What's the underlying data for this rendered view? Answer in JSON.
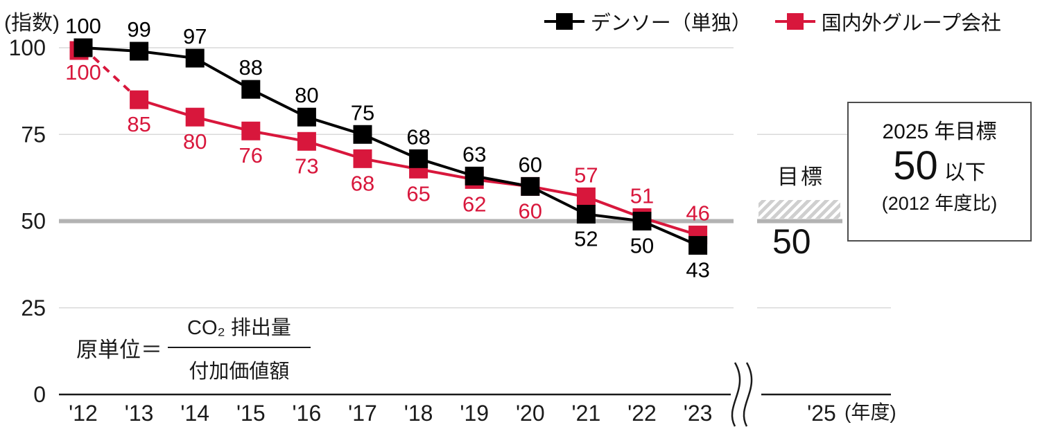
{
  "colors": {
    "black_series": "#000000",
    "red_series": "#d8173c",
    "grid": "#d9d9d9",
    "target_line": "#b3b3b3",
    "axis": "#1a1a1a",
    "hatch": "#cfcfcf",
    "text": "#1a1a1a"
  },
  "legend": {
    "items": [
      {
        "name": "denso-standalone",
        "label": "デンソー（単独）",
        "color": "#000000"
      },
      {
        "name": "group-companies",
        "label": "国内外グループ会社",
        "color": "#d8173c"
      }
    ]
  },
  "axis": {
    "y_unit_label": "(指数)",
    "x_unit_label": "(年度)",
    "y_ticks": [
      0,
      25,
      50,
      75,
      100
    ],
    "x_break_tick": "'25"
  },
  "chart_data": {
    "type": "line",
    "categories": [
      "'12",
      "'13",
      "'14",
      "'15",
      "'16",
      "'17",
      "'18",
      "'19",
      "'20",
      "'21",
      "'22",
      "'23"
    ],
    "ylim": [
      0,
      100
    ],
    "y_gridlines": [
      0,
      25,
      50,
      75,
      100
    ],
    "target_value": 50,
    "x_axis_break": true,
    "future_tick": "'25",
    "series": [
      {
        "name": "デンソー（単独）",
        "color": "#000000",
        "line_style": "solid",
        "values": [
          100,
          99,
          97,
          88,
          80,
          75,
          68,
          63,
          60,
          52,
          50,
          43
        ],
        "label_positions": [
          "above",
          "above",
          "above",
          "above",
          "above",
          "above",
          "above",
          "above",
          "above",
          "below",
          "below",
          "below"
        ]
      },
      {
        "name": "国内外グループ会社",
        "color": "#d8173c",
        "line_style": "first_segment_dashed",
        "values": [
          100,
          85,
          80,
          76,
          73,
          68,
          65,
          62,
          60,
          57,
          51,
          46
        ],
        "label_positions": [
          "below",
          "below",
          "below",
          "below",
          "below",
          "below",
          "below",
          "below",
          "below",
          "above",
          "above",
          "above"
        ]
      }
    ]
  },
  "target": {
    "hatch_label": "目標",
    "hatch_value": "50",
    "box": {
      "line1": "2025 年目標",
      "value": "50",
      "value_suffix": "以下",
      "line2": "(2012 年度比)"
    }
  },
  "formula": {
    "lhs": "原単位＝",
    "numerator": "CO₂ 排出量",
    "denominator": "付加価値額"
  }
}
